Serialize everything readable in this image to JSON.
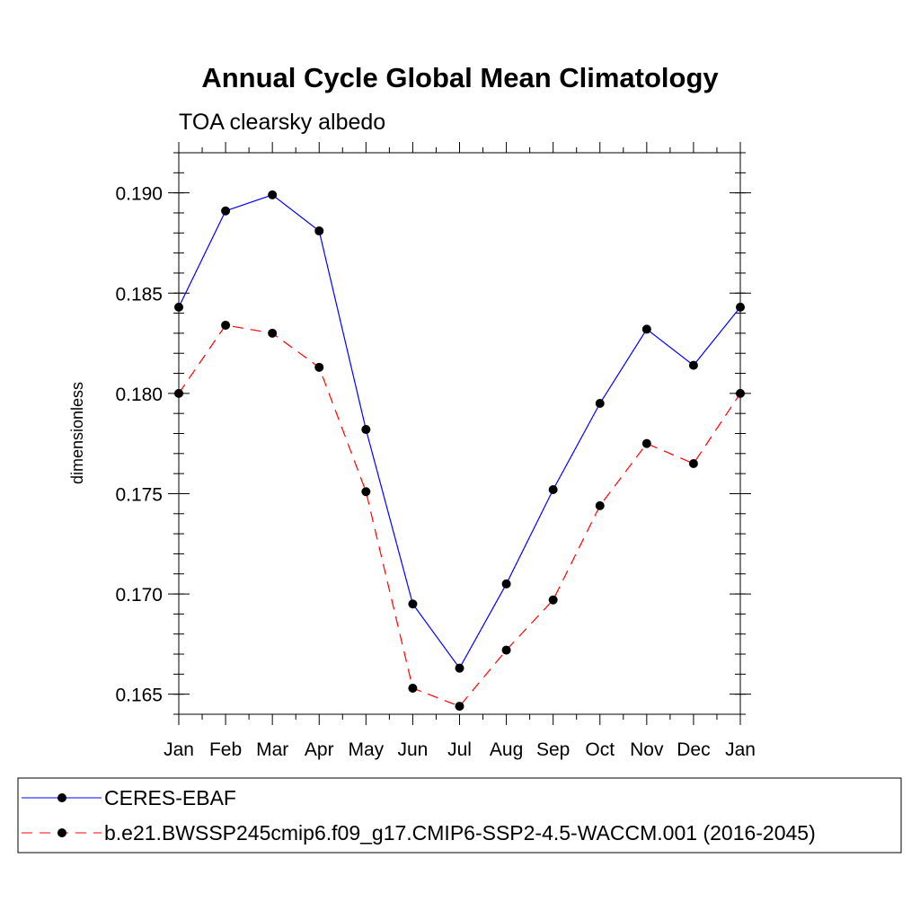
{
  "chart_data": {
    "type": "line",
    "title": "Annual Cycle Global Mean Climatology",
    "subtitle": "TOA clearsky albedo",
    "xlabel": "",
    "ylabel": "dimensionless",
    "categories": [
      "Jan",
      "Feb",
      "Mar",
      "Apr",
      "May",
      "Jun",
      "Jul",
      "Aug",
      "Sep",
      "Oct",
      "Nov",
      "Dec",
      "Jan"
    ],
    "ylim": [
      0.164,
      0.192
    ],
    "y_ticks": [
      0.165,
      0.17,
      0.175,
      0.18,
      0.185,
      0.19
    ],
    "y_tick_labels": [
      "0.165",
      "0.170",
      "0.175",
      "0.180",
      "0.185",
      "0.190"
    ],
    "series": [
      {
        "name": "CERES-EBAF",
        "color": "#0000ff",
        "line_style": "solid",
        "marker": "filled-circle",
        "values": [
          0.1843,
          0.1891,
          0.1899,
          0.1881,
          0.1782,
          0.1695,
          0.1663,
          0.1705,
          0.1752,
          0.1795,
          0.1832,
          0.1814,
          0.1843
        ]
      },
      {
        "name": "b.e21.BWSSP245cmip6.f09_g17.CMIP6-SSP2-4.5-WACCM.001 (2016-2045)",
        "color": "#ff0000",
        "line_style": "dashed",
        "marker": "filled-circle",
        "values": [
          0.18,
          0.1834,
          0.183,
          0.1813,
          0.1751,
          0.1653,
          0.1644,
          0.1672,
          0.1697,
          0.1744,
          0.1775,
          0.1765,
          0.18
        ]
      }
    ],
    "grid": false,
    "legend_position": "bottom"
  }
}
